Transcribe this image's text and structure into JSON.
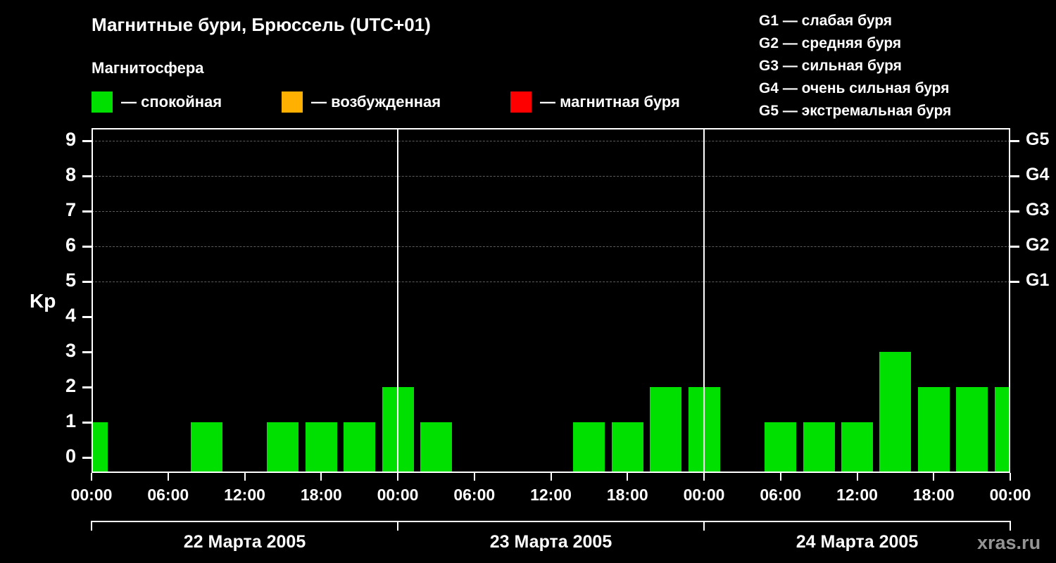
{
  "header": {
    "title": "Магнитные бури, Брюссель (UTC+01)",
    "subtitle": "Магнитосфера",
    "legend": [
      {
        "label": "— спокойная",
        "color": "#00e000"
      },
      {
        "label": "— возбужденная",
        "color": "#ffb000"
      },
      {
        "label": "— магнитная буря",
        "color": "#ff0000"
      }
    ],
    "storm_scale": [
      "G1 — слабая буря",
      "G2 — средняя буря",
      "G3 — сильная буря",
      "G4 — очень сильная буря",
      "G5 — экстремальная буря"
    ]
  },
  "watermark": "xras.ru",
  "chart_data": {
    "type": "bar",
    "title": "Магнитные бури, Брюссель (UTC+01)",
    "ylabel": "Kp",
    "ylim": [
      0,
      9
    ],
    "y_ticks": [
      0,
      1,
      2,
      3,
      4,
      5,
      6,
      7,
      8,
      9
    ],
    "grid_levels": [
      5,
      6,
      7,
      8,
      9
    ],
    "right_axis": [
      {
        "label": "G1",
        "kp": 5
      },
      {
        "label": "G2",
        "kp": 6
      },
      {
        "label": "G3",
        "kp": 7
      },
      {
        "label": "G4",
        "kp": 8
      },
      {
        "label": "G5",
        "kp": 9
      }
    ],
    "x_tick_labels": [
      "00:00",
      "06:00",
      "12:00",
      "18:00",
      "00:00",
      "06:00",
      "12:00",
      "18:00",
      "00:00",
      "06:00",
      "12:00",
      "18:00",
      "00:00"
    ],
    "slot_hours": 3,
    "day_divider_hours": [
      24,
      48
    ],
    "previous_day_partial_kp": 1,
    "days": [
      {
        "date": "22 Марта 2005",
        "kp": [
          0,
          0,
          1,
          0,
          1,
          1,
          1,
          2
        ]
      },
      {
        "date": "23 Марта 2005",
        "kp": [
          1,
          0,
          0,
          0,
          1,
          1,
          2,
          2
        ]
      },
      {
        "date": "24 Марта 2005",
        "kp": [
          0,
          1,
          1,
          1,
          3,
          2,
          2,
          2
        ]
      }
    ],
    "colors": {
      "quiet": "#00e000",
      "unsettled": "#ffb000",
      "storm": "#ff0000",
      "grid": "#5c5c5c",
      "axis": "#ffffff"
    },
    "thresholds": {
      "quiet_max": 3,
      "unsettled_max": 4
    },
    "legend_position": "top"
  }
}
